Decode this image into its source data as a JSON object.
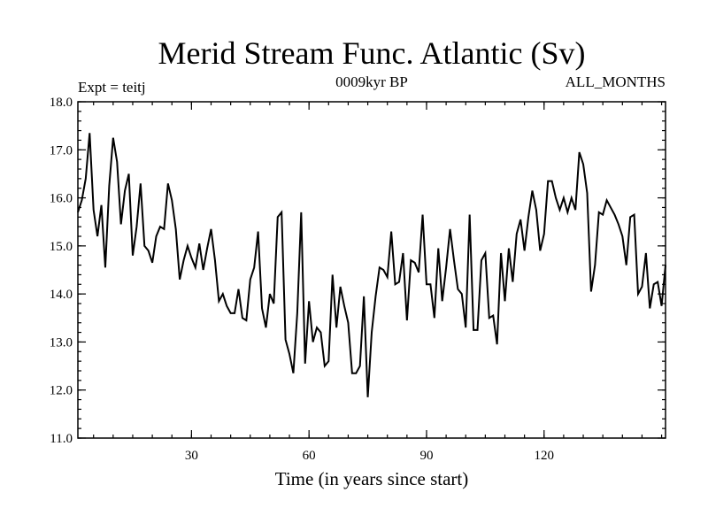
{
  "chart_data": {
    "type": "line",
    "title": "Merid Stream Func. Atlantic (Sv)",
    "subtitle_left": "Expt = teitj",
    "subtitle_center": "0009kyr BP",
    "subtitle_right": "ALL_MONTHS",
    "xlabel": "Time (in years since start)",
    "ylabel": "",
    "xlim": [
      1,
      151
    ],
    "ylim": [
      11.0,
      18.0
    ],
    "x_ticks": [
      30,
      60,
      90,
      120
    ],
    "y_ticks": [
      11.0,
      12.0,
      13.0,
      14.0,
      15.0,
      16.0,
      17.0,
      18.0
    ],
    "grid": false,
    "series": [
      {
        "name": "Merid Stream Func.",
        "color": "#000000",
        "values": [
          15.7,
          15.95,
          16.4,
          17.35,
          15.75,
          15.2,
          15.85,
          14.55,
          16.25,
          17.25,
          16.75,
          15.45,
          16.15,
          16.5,
          14.8,
          15.4,
          16.3,
          15.0,
          14.9,
          14.65,
          15.2,
          15.4,
          15.35,
          16.3,
          15.95,
          15.35,
          14.3,
          14.7,
          15.0,
          14.75,
          14.55,
          15.05,
          14.5,
          14.95,
          15.35,
          14.7,
          13.85,
          14.0,
          13.75,
          13.6,
          13.6,
          14.1,
          13.5,
          13.45,
          14.3,
          14.55,
          15.3,
          13.7,
          13.3,
          14.0,
          13.8,
          15.6,
          15.7,
          13.05,
          12.75,
          12.35,
          13.6,
          15.7,
          12.55,
          13.85,
          13.0,
          13.3,
          13.2,
          12.5,
          12.6,
          14.4,
          13.3,
          14.15,
          13.75,
          13.4,
          12.35,
          12.35,
          12.5,
          13.95,
          11.85,
          13.2,
          13.95,
          14.55,
          14.5,
          14.35,
          15.3,
          14.2,
          14.25,
          14.85,
          13.45,
          14.7,
          14.65,
          14.45,
          15.65,
          14.2,
          14.2,
          13.5,
          14.95,
          13.85,
          14.55,
          15.35,
          14.7,
          14.1,
          14.0,
          13.3,
          15.65,
          13.25,
          13.25,
          14.7,
          14.85,
          13.5,
          13.55,
          12.95,
          14.85,
          13.85,
          14.95,
          14.25,
          15.25,
          15.55,
          14.9,
          15.6,
          16.15,
          15.75,
          14.9,
          15.25,
          16.35,
          16.35,
          16.0,
          15.75,
          16.0,
          15.7,
          16.0,
          15.75,
          16.95,
          16.7,
          16.1,
          14.05,
          14.6,
          15.7,
          15.65,
          15.95,
          15.8,
          15.65,
          15.45,
          15.2,
          14.6,
          15.6,
          15.65,
          14.0,
          14.15,
          14.85,
          13.7,
          14.2,
          14.25,
          13.75,
          14.6
        ]
      }
    ]
  }
}
